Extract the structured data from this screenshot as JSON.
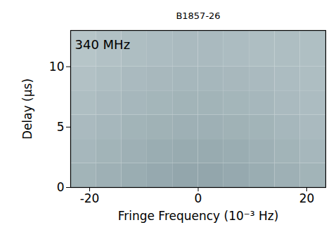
{
  "chart_data": {
    "type": "heatmap",
    "title": "B1857-26",
    "annotations": [
      "340 MHz"
    ],
    "x_label": "Fringe Frequency (10⁻³ Hz)",
    "y_label": "Delay (μs)",
    "xlim": [
      -23.5,
      23.5
    ],
    "ylim": [
      0,
      13
    ],
    "xticks": [
      -20,
      0,
      20
    ],
    "yticks": [
      0,
      5,
      10
    ],
    "clim": [
      0,
      1
    ],
    "cells": {
      "x_edges": [
        -23.5,
        -18.8,
        -14.1,
        -9.4,
        -4.7,
        0,
        4.7,
        9.4,
        14.1,
        18.8,
        23.5
      ],
      "y_edges": [
        0,
        2,
        4,
        6,
        8,
        10,
        13
      ],
      "values": [
        [
          0.55,
          0.6,
          0.65,
          0.7,
          0.75,
          0.75,
          0.7,
          0.65,
          0.6,
          0.55
        ],
        [
          0.5,
          0.55,
          0.6,
          0.65,
          0.68,
          0.68,
          0.65,
          0.6,
          0.55,
          0.5
        ],
        [
          0.45,
          0.5,
          0.55,
          0.58,
          0.6,
          0.6,
          0.58,
          0.55,
          0.5,
          0.45
        ],
        [
          0.4,
          0.45,
          0.5,
          0.52,
          0.55,
          0.55,
          0.52,
          0.5,
          0.45,
          0.42
        ],
        [
          0.35,
          0.4,
          0.45,
          0.48,
          0.5,
          0.5,
          0.48,
          0.45,
          0.42,
          0.4
        ],
        [
          0.3,
          0.35,
          0.4,
          0.42,
          0.45,
          0.45,
          0.42,
          0.4,
          0.4,
          0.38
        ]
      ]
    }
  }
}
